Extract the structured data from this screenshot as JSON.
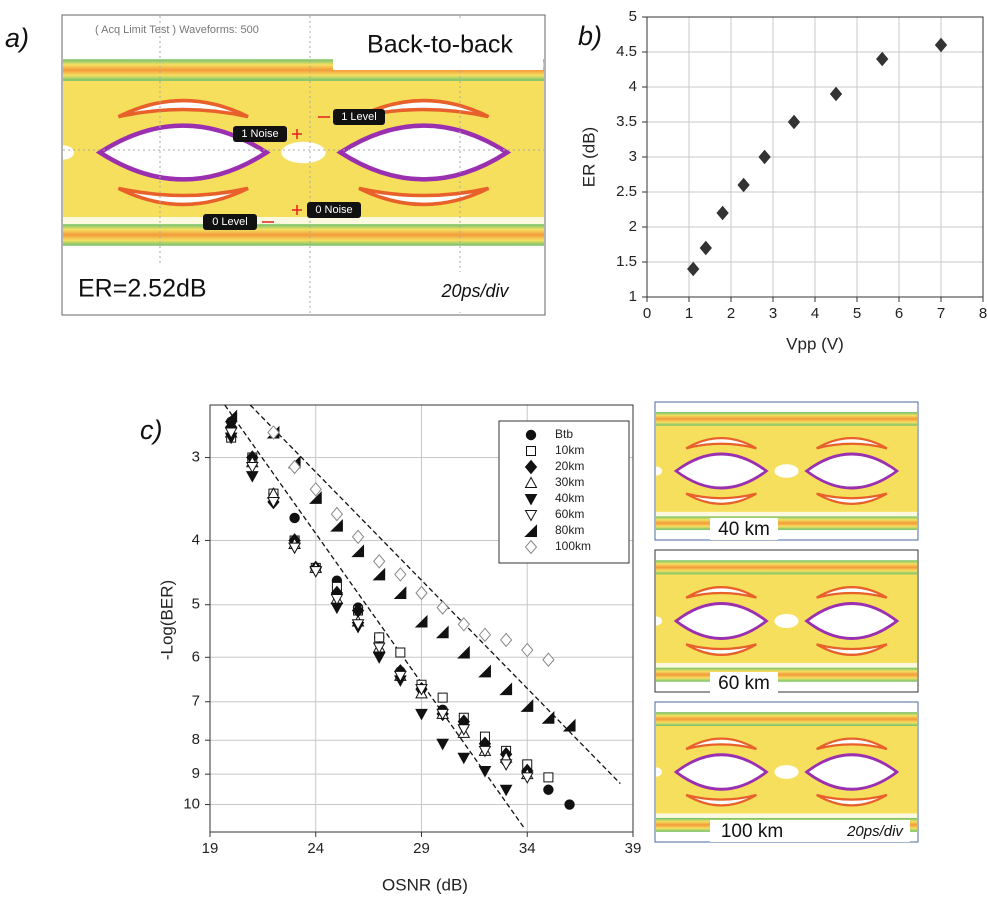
{
  "panel_a": {
    "label": "a)",
    "header": "( Acq Limit Test ) Waveforms: 500",
    "title": "Back-to-back",
    "markers": [
      "1 Level",
      "1 Noise",
      "0 Level",
      "0 Noise"
    ],
    "er": "ER=2.52dB",
    "timebase": "20ps/div"
  },
  "eye_insets": {
    "labels": [
      "40 km",
      "60 km",
      "100 km"
    ],
    "timebase": "20ps/div"
  },
  "chart_data": [
    {
      "type": "scatter",
      "label": "b)",
      "xlabel": "Vpp (V)",
      "ylabel": "ER (dB)",
      "x": [
        1.1,
        1.4,
        1.8,
        2.3,
        2.8,
        3.5,
        4.5,
        5.6,
        7.0
      ],
      "values": [
        1.4,
        1.7,
        2.2,
        2.6,
        3.0,
        3.5,
        3.9,
        4.4,
        4.6
      ],
      "color": "#333333",
      "marker": "diamond-filled",
      "xlim": [
        0,
        8
      ],
      "xticks": [
        0,
        1,
        2,
        3,
        4,
        5,
        6,
        7,
        8
      ],
      "ylim": [
        1,
        5
      ],
      "yticks": [
        1,
        1.5,
        2,
        2.5,
        3,
        3.5,
        4,
        4.5,
        5
      ],
      "grid": true
    },
    {
      "type": "scatter",
      "label": "c)",
      "xlabel": "OSNR (dB)",
      "ylabel": "-Log(BER)",
      "y_scale": "log",
      "y_inverted": true,
      "xlim": [
        19,
        39
      ],
      "xticks": [
        19,
        24,
        29,
        34,
        39
      ],
      "ylim": [
        2.5,
        11
      ],
      "yticks": [
        3,
        4,
        5,
        6,
        7,
        8,
        9,
        10
      ],
      "grid": true,
      "legend": "upper right",
      "series": [
        {
          "name": "Btb",
          "color": "#111111",
          "marker": "circle-filled",
          "x": [
            20,
            21,
            22,
            23,
            24,
            25,
            26,
            27,
            28,
            29,
            30,
            31,
            32,
            33,
            34,
            35,
            36
          ],
          "values": [
            2.65,
            3.0,
            3.4,
            3.7,
            4.4,
            4.6,
            5.05,
            5.6,
            6.3,
            6.7,
            7.2,
            7.6,
            8.1,
            8.6,
            8.9,
            9.5,
            10.0
          ]
        },
        {
          "name": "10km",
          "color": "#111111",
          "marker": "square-open",
          "x": [
            20,
            21,
            22,
            23,
            24,
            25,
            26,
            27,
            28,
            29,
            30,
            31,
            32,
            33,
            34,
            35
          ],
          "values": [
            2.8,
            3.0,
            3.4,
            4.0,
            4.4,
            4.7,
            5.1,
            5.6,
            5.9,
            6.6,
            6.9,
            7.4,
            7.9,
            8.3,
            8.7,
            9.1
          ]
        },
        {
          "name": "20km",
          "color": "#111111",
          "marker": "diamond-filled",
          "x": [
            20,
            21,
            22,
            23,
            24,
            25,
            26,
            27,
            28,
            29,
            30,
            31,
            32,
            33,
            34
          ],
          "values": [
            2.7,
            3.0,
            3.5,
            4.0,
            4.4,
            4.8,
            5.1,
            5.9,
            6.3,
            6.7,
            7.3,
            7.5,
            8.1,
            8.4,
            8.9
          ]
        },
        {
          "name": "30km",
          "color": "#111111",
          "marker": "triangle-up-open",
          "x": [
            20,
            21,
            22,
            23,
            24,
            25,
            26,
            27,
            28,
            29,
            30,
            31,
            32,
            33,
            34
          ],
          "values": [
            2.75,
            3.05,
            3.4,
            4.05,
            4.4,
            4.9,
            5.3,
            5.8,
            6.4,
            6.8,
            7.3,
            7.8,
            8.3,
            8.5,
            9.0
          ]
        },
        {
          "name": "40km",
          "color": "#111111",
          "marker": "triangle-down-filled",
          "x": [
            20,
            21,
            22,
            23,
            24,
            25,
            26,
            27,
            28,
            29,
            30,
            31,
            32,
            33
          ],
          "values": [
            2.8,
            3.2,
            3.5,
            4.1,
            4.45,
            5.05,
            5.4,
            6.0,
            6.5,
            7.3,
            8.1,
            8.5,
            8.9,
            9.5
          ]
        },
        {
          "name": "60km",
          "color": "#111111",
          "marker": "triangle-down-open",
          "x": [
            20,
            21,
            22,
            23,
            24,
            25,
            26,
            27,
            28,
            29,
            30,
            31,
            32,
            33,
            34
          ],
          "values": [
            2.75,
            3.1,
            3.5,
            4.1,
            4.45,
            4.9,
            5.35,
            5.8,
            6.4,
            6.7,
            7.3,
            7.7,
            8.3,
            8.7,
            9.1
          ]
        },
        {
          "name": "80km",
          "color": "#111111",
          "marker": "half-triangle",
          "x": [
            20,
            22,
            23,
            24,
            25,
            26,
            27,
            28,
            29,
            30,
            31,
            32,
            33,
            34,
            35,
            36
          ],
          "values": [
            2.6,
            2.75,
            3.05,
            3.45,
            3.8,
            4.15,
            4.5,
            4.8,
            5.3,
            5.5,
            5.9,
            6.3,
            6.7,
            7.1,
            7.4,
            7.6
          ]
        },
        {
          "name": "100km",
          "color": "#888888",
          "marker": "diamond-open",
          "x": [
            22,
            23,
            24,
            25,
            26,
            27,
            28,
            29,
            30,
            31,
            32,
            33,
            34,
            35
          ],
          "values": [
            2.75,
            3.1,
            3.35,
            3.65,
            3.95,
            4.3,
            4.5,
            4.8,
            5.05,
            5.35,
            5.55,
            5.65,
            5.85,
            6.05
          ]
        }
      ],
      "fit_lines": [
        {
          "x": [
            19.7,
            33.9
          ],
          "values": [
            2.5,
            10.9
          ]
        },
        {
          "x": [
            20.9,
            38.4
          ],
          "values": [
            2.5,
            9.3
          ]
        }
      ]
    }
  ]
}
